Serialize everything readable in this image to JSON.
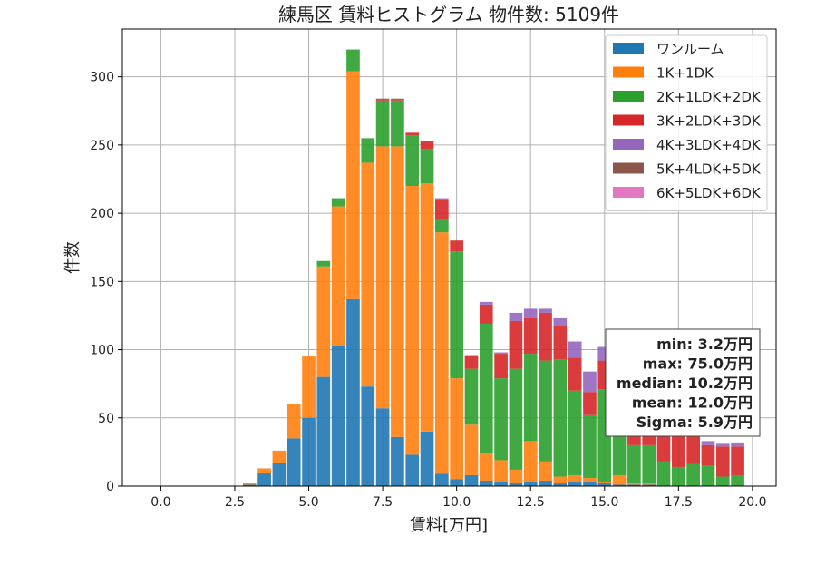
{
  "chart_data": {
    "type": "bar",
    "stacked": true,
    "title": "練馬区 賃料ヒストグラム 物件数: 5109件",
    "xlabel": "賃料[万円]",
    "ylabel": "件数",
    "xlim": [
      -1.3,
      20.8
    ],
    "ylim": [
      0,
      335
    ],
    "xticks": [
      0.0,
      2.5,
      5.0,
      7.5,
      10.0,
      12.5,
      15.0,
      17.5,
      20.0
    ],
    "xtick_labels": [
      "0.0",
      "2.5",
      "5.0",
      "7.5",
      "10.0",
      "12.5",
      "15.0",
      "17.5",
      "20.0"
    ],
    "yticks": [
      0,
      50,
      100,
      150,
      200,
      250,
      300
    ],
    "ytick_labels": [
      "0",
      "50",
      "100",
      "150",
      "200",
      "250",
      "300"
    ],
    "grid": true,
    "legend_position": "top-right",
    "bin_width": 0.5,
    "x": [
      3.0,
      3.5,
      4.0,
      4.5,
      5.0,
      5.5,
      6.0,
      6.5,
      7.0,
      7.5,
      8.0,
      8.5,
      9.0,
      9.5,
      10.0,
      10.5,
      11.0,
      11.5,
      12.0,
      12.5,
      13.0,
      13.5,
      14.0,
      14.5,
      15.0,
      15.5,
      16.0,
      16.5,
      17.0,
      17.5,
      18.0,
      18.5,
      19.0,
      19.5
    ],
    "series": [
      {
        "name": "ワンルーム",
        "color": "#1f77b4",
        "values": [
          1,
          10,
          17,
          35,
          50,
          80,
          103,
          137,
          73,
          57,
          36,
          23,
          40,
          9,
          5,
          8,
          4,
          3,
          2,
          3,
          4,
          2,
          3,
          3,
          2,
          1,
          1,
          1,
          0,
          0,
          0,
          0,
          0,
          0
        ]
      },
      {
        "name": "1K+1DK",
        "color": "#ff7f0e",
        "values": [
          1,
          3,
          9,
          25,
          45,
          81,
          102,
          167,
          164,
          192,
          213,
          197,
          182,
          177,
          74,
          37,
          20,
          16,
          10,
          30,
          14,
          5,
          5,
          3,
          1,
          7,
          1,
          1,
          0,
          0,
          0,
          0,
          0,
          0
        ]
      },
      {
        "name": "2K+1LDK+2DK",
        "color": "#2ca02c",
        "values": [
          0,
          0,
          0,
          0,
          0,
          4,
          6,
          16,
          18,
          33,
          33,
          37,
          25,
          10,
          93,
          41,
          95,
          60,
          74,
          64,
          74,
          86,
          62,
          46,
          68,
          35,
          28,
          28,
          18,
          14,
          16,
          15,
          7,
          8
        ]
      },
      {
        "name": "3K+2LDK+3DK",
        "color": "#d62728",
        "values": [
          0,
          0,
          0,
          0,
          0,
          0,
          0,
          0,
          0,
          1,
          1,
          2,
          6,
          14,
          8,
          10,
          14,
          18,
          35,
          26,
          35,
          24,
          24,
          17,
          21,
          25,
          30,
          27,
          32,
          25,
          24,
          15,
          22,
          21
        ]
      },
      {
        "name": "4K+3LDK+4DK",
        "color": "#9467bd",
        "values": [
          0,
          0,
          0,
          0,
          0,
          0,
          0,
          0,
          0,
          0,
          0,
          0,
          0,
          1,
          0,
          0,
          2,
          1,
          6,
          7,
          3,
          6,
          12,
          15,
          10,
          5,
          6,
          7,
          8,
          6,
          4,
          3,
          2,
          3
        ]
      },
      {
        "name": "5K+4LDK+5DK",
        "color": "#8c564b",
        "values": [
          0,
          0,
          0,
          0,
          0,
          0,
          0,
          0,
          0,
          1,
          1,
          0,
          0,
          0,
          0,
          0,
          0,
          0,
          0,
          0,
          0,
          0,
          0,
          0,
          0,
          0,
          0,
          0,
          0,
          0,
          0,
          0,
          0,
          0
        ]
      },
      {
        "name": "6K+5LDK+6DK",
        "color": "#e377c2",
        "values": [
          0,
          0,
          0,
          0,
          0,
          0,
          0,
          0,
          0,
          0,
          0,
          0,
          0,
          0,
          0,
          0,
          0,
          0,
          0,
          0,
          0,
          0,
          0,
          0,
          0,
          0,
          0,
          0,
          0,
          0,
          0,
          0,
          0,
          0
        ]
      }
    ],
    "stats_box": [
      "min: 3.2万円",
      "max: 75.0万円",
      "median: 10.2万円",
      "mean: 12.0万円",
      "Sigma: 5.9万円"
    ]
  }
}
